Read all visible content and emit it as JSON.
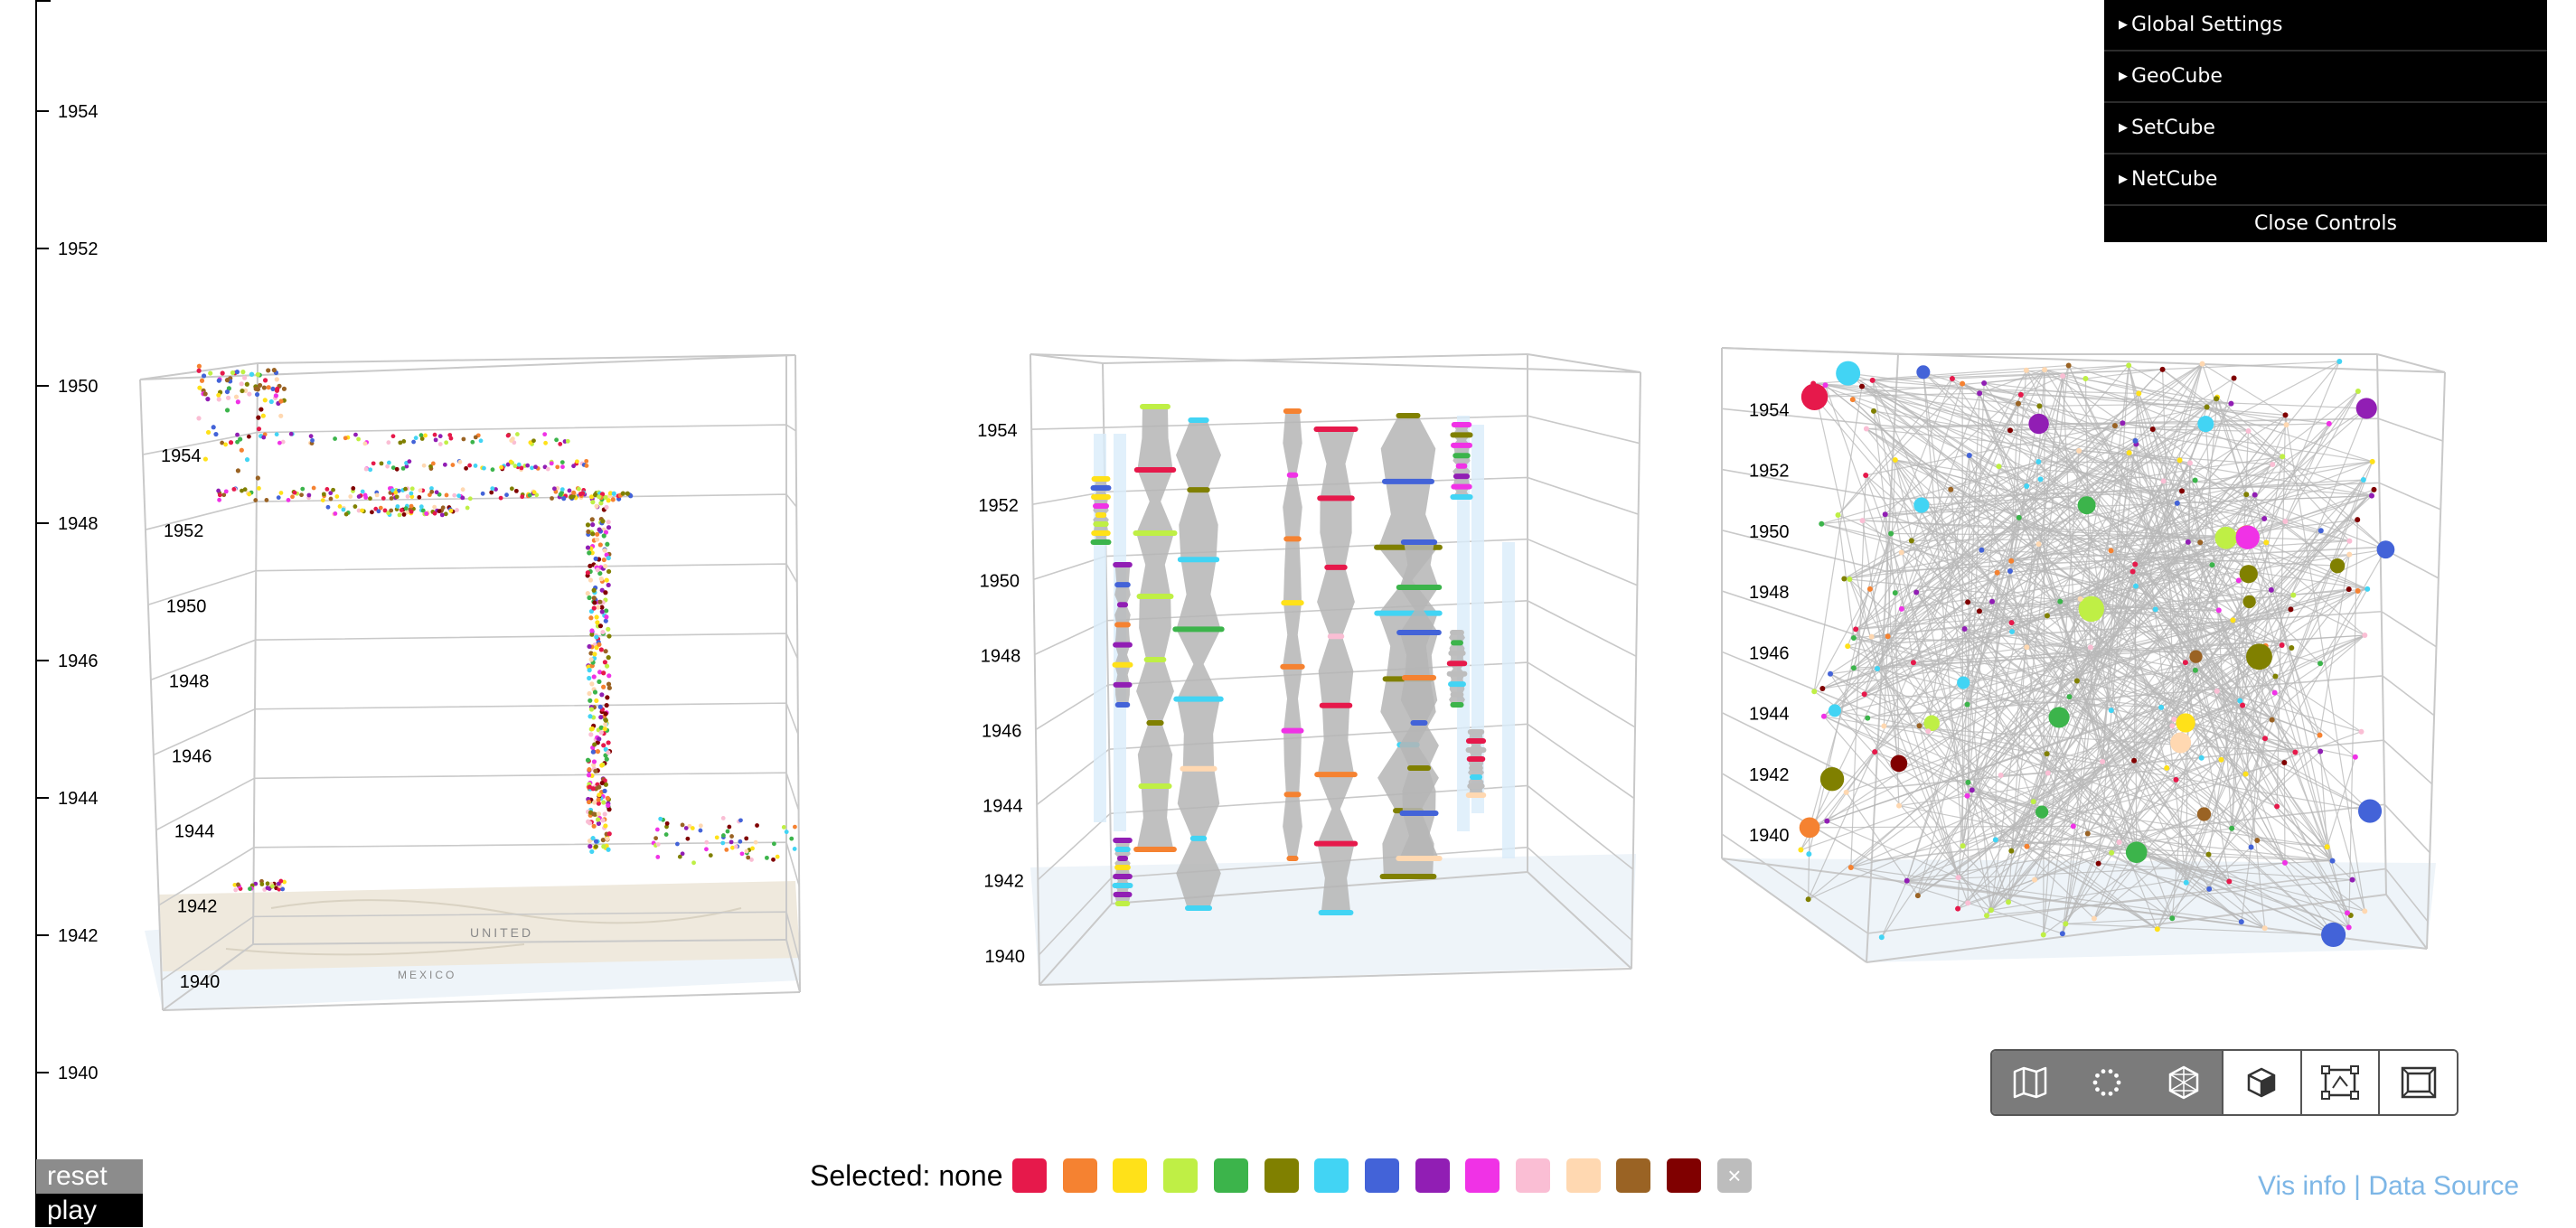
{
  "time_axis": {
    "ticks": [
      "1954",
      "1952",
      "1950",
      "1948",
      "1946",
      "1944",
      "1942",
      "1940"
    ]
  },
  "cubes": {
    "geo": {
      "labels": [
        "1954",
        "1952",
        "1950",
        "1948",
        "1946",
        "1944",
        "1942",
        "1940"
      ],
      "map_labels": [
        "UNITED",
        "MEXICO"
      ]
    },
    "set": {
      "labels": [
        "1954",
        "1952",
        "1950",
        "1948",
        "1946",
        "1944",
        "1942",
        "1940"
      ]
    },
    "net": {
      "labels": [
        "1954",
        "1952",
        "1950",
        "1948",
        "1946",
        "1944",
        "1942",
        "1940"
      ]
    }
  },
  "controls": {
    "folders": [
      "Global Settings",
      "GeoCube",
      "SetCube",
      "NetCube"
    ],
    "close_label": "Close Controls"
  },
  "buttons": {
    "reset": "reset",
    "play": "play"
  },
  "selection": {
    "label": "Selected: none",
    "colors": [
      "#e6194b",
      "#f58231",
      "#ffe119",
      "#bfef45",
      "#3cb44b",
      "#808000",
      "#42d4f4",
      "#4363d8",
      "#911eb4",
      "#f032e6",
      "#fabed4",
      "#ffd8b1",
      "#9a6324",
      "#800000"
    ],
    "clear_symbol": "×"
  },
  "links": {
    "vis_info": "Vis info",
    "separator": " | ",
    "data_source": "Data Source"
  },
  "toolbar": {
    "tools": [
      "map-icon",
      "circle-layout-icon",
      "network-icon",
      "cube-icon",
      "bounding-box-icon",
      "frame-icon"
    ]
  }
}
